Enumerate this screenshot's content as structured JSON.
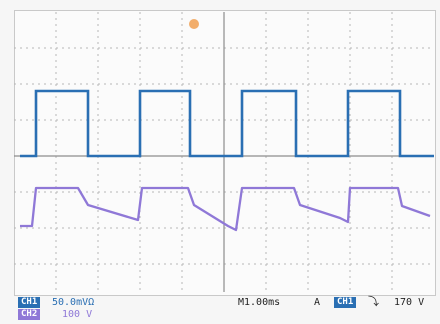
{
  "colors": {
    "ch1": "#2a6fb3",
    "ch2": "#8f78d7",
    "grid": "#b6b6b6",
    "trigger_marker": "#f1a45a"
  },
  "status": {
    "ch1_label": "CH1",
    "ch1_scale": "50.0mVΩ",
    "ch2_label": "CH2",
    "ch2_scale": "100 V",
    "timebase": "M1.00ms",
    "trigger_mode": "A",
    "trigger_source": "CH1",
    "trigger_slope_icon": "falling-edge",
    "trigger_level": "170 V"
  },
  "waveforms": {
    "ch1": {
      "type": "square",
      "pulses": 4
    },
    "ch2": {
      "type": "sawtooth-like",
      "cycles": 4
    }
  }
}
